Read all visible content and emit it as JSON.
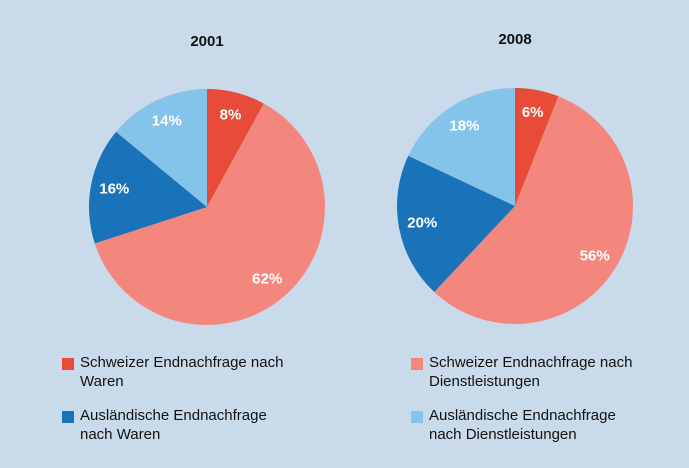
{
  "chart_data": [
    {
      "type": "pie",
      "title": "2001",
      "values": [
        8,
        62,
        16,
        14
      ],
      "value_labels": [
        "8%",
        "62%",
        "16%",
        "14%"
      ]
    },
    {
      "type": "pie",
      "title": "2008",
      "values": [
        6,
        56,
        20,
        18
      ],
      "value_labels": [
        "6%",
        "56%",
        "20%",
        "18%"
      ]
    }
  ],
  "legend": {
    "labels": [
      "Schweizer Endnachfrage nach Waren",
      "Schweizer Endnachfrage nach Dienstleistungen",
      "Ausländische Endnachfrage nach Waren",
      "Ausländische Endnachfrage nach Dienstleistungen"
    ],
    "colors": [
      "#e84b3a",
      "#f4877d",
      "#1a73b8",
      "#84c3ea"
    ]
  }
}
